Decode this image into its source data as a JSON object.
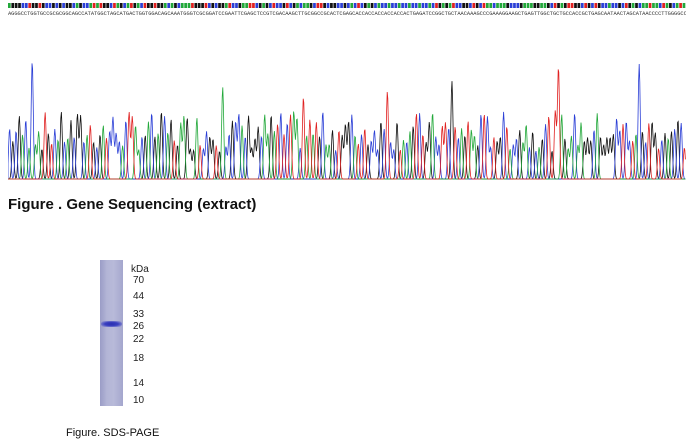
{
  "sequence": {
    "text": "AGGGCCTGGTGCCGCGCGGCAGCCATATGGCTAGCATGACTGGTGGACAGCAAATGGGTCGCGGATCCGAATTCGAGCTCCGTCGACAAGCTTGCGGCCGCACTCGAGCACCACCACCACCACCACTGAGATCCGGCTGCTAACAAAGCCCGAAAGGAAGCTGAGTTGGCTGCTGCCACCGCTGAGCAATAACTAGCATAACCCCTTGGGGCCTCTAAACGGGTCTTGAGGGGTTTTTTGCTGAAAGGAGGAACTATATCCGGATTGGCGAATGGGACGCGCCCTGTAGCGGCGCATTAAGCGCGGCGGGTGTGGTGGTTACGCGCAGCGTGACCGCTACACTTGCCAGCGCCCTAGCGCCCGCTCCTTTCGCTTTCTTCCCTTCCTTTCTCGCCACGTTCGCCGGC",
    "base_colors": {
      "A": "#22a83a",
      "C": "#2b3fd6",
      "G": "#111111",
      "T": "#e02020"
    }
  },
  "chromatogram": {
    "trace_colors": [
      "#111111",
      "#2b3fd6",
      "#22a83a",
      "#e02020"
    ],
    "peak_count": 210
  },
  "figure1": {
    "caption": "Figure . Gene Sequencing (extract)"
  },
  "gel": {
    "unit_label": "kDa",
    "markers": [
      "70",
      "44",
      "33",
      "26",
      "22",
      "18",
      "14",
      "10"
    ],
    "band_color": "#2a2fb0",
    "lane_color": "#b3b5d6"
  },
  "figure2": {
    "caption": "Figure. SDS-PAGE"
  }
}
